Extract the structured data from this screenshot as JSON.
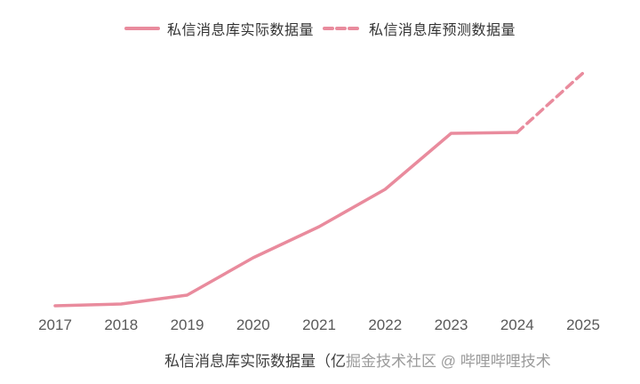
{
  "legend": {
    "actual": "私信消息库实际数据量",
    "forecast": "私信消息库预测数据量"
  },
  "colors": {
    "line": "#e98b9d",
    "axis_text": "#595959",
    "caption_text": "#3d3d3d",
    "watermark_text": "#9b9b9b"
  },
  "caption": {
    "text": "私信消息库实际数据量（亿",
    "watermark": "掘金技术社区 @ 哔哩哔哩技术"
  },
  "chart_data": {
    "type": "line",
    "title": "",
    "xlabel": "",
    "ylabel": "",
    "grid": false,
    "legend_position": "top-center",
    "y_axis_visible": false,
    "x_ticks": [
      2017,
      2018,
      2019,
      2020,
      2021,
      2022,
      2023,
      2024,
      2025
    ],
    "xlim": [
      2017,
      2025
    ],
    "ylim": [
      0,
      285
    ],
    "units": "relative (no y-axis labels shown)",
    "series": [
      {
        "name": "私信消息库实际数据量",
        "style": "solid",
        "x": [
          2017,
          2018,
          2019,
          2020,
          2021,
          2022,
          2023,
          2024
        ],
        "values": [
          6,
          8,
          18,
          60,
          95,
          137,
          200,
          201
        ]
      },
      {
        "name": "私信消息库预测数据量",
        "style": "dashed",
        "x": [
          2024,
          2025
        ],
        "values": [
          201,
          268
        ]
      }
    ]
  }
}
